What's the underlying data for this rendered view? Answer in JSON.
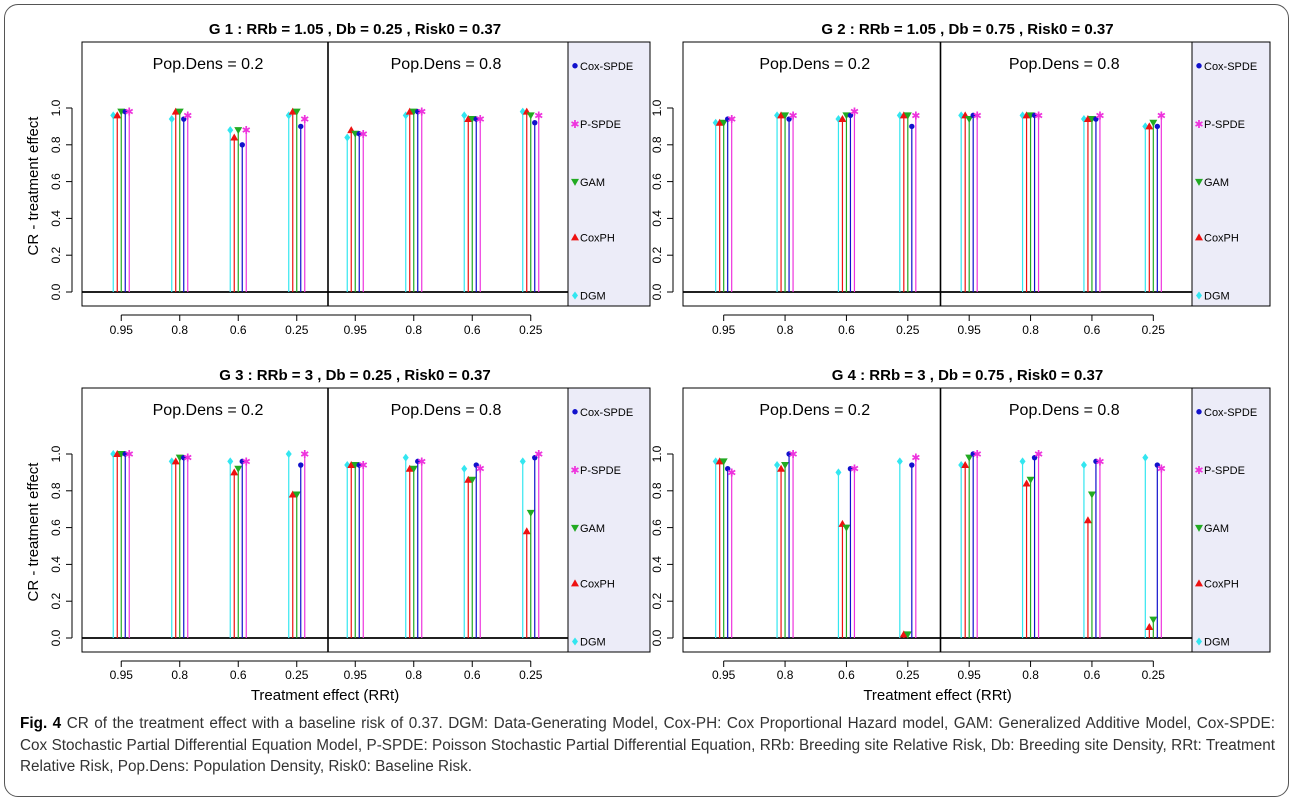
{
  "caption": {
    "label": "Fig. 4",
    "text": "CR of the treatment effect with a baseline risk of 0.37. DGM: Data-Generating Model, Cox-PH: Cox Proportional Hazard model, GAM: Generalized Additive Model, Cox-SPDE: Cox Stochastic Partial Differential Equation Model, P-SPDE: Poisson Stochastic Partial Differential Equation, RRb: Breeding site Relative Risk, Db: Breeding site Density, RRt: Treatment Relative Risk, Pop.Dens: Population Density, Risk0: Baseline Risk."
  },
  "colors": {
    "DGM": "#33e6f0",
    "CoxPH": "#ee1111",
    "GAM": "#22aa22",
    "Cox-SPDE": "#1111cc",
    "P-SPDE": "#ee33dd",
    "legend_bg": "#ececf8"
  },
  "legend": {
    "entries": [
      "Cox-SPDE",
      "P-SPDE",
      "GAM",
      "CoxPH",
      "DGM"
    ],
    "symbols": [
      "●",
      "✱",
      "▼",
      "▲",
      "◆"
    ]
  },
  "chart_data": [
    {
      "type": "scatter",
      "title": "G 1 : RRb = 1.05 , Db = 0.25 , Risk0 = 0.37",
      "ylabel": "CR - treatment effect",
      "xlabel": "",
      "ylim": [
        0,
        1
      ],
      "yticks": [
        "0.0",
        "0.2",
        "0.4",
        "0.6",
        "0.8",
        "1.0"
      ],
      "categories": [
        "0.95",
        "0.8",
        "0.6",
        "0.25",
        "0.95",
        "0.8",
        "0.6",
        "0.25"
      ],
      "groups": [
        "Pop.Dens = 0.2",
        "Pop.Dens = 0.8"
      ],
      "series": [
        {
          "name": "DGM",
          "values": [
            0.96,
            0.94,
            0.88,
            0.96,
            0.84,
            0.96,
            0.96,
            0.98
          ]
        },
        {
          "name": "CoxPH",
          "values": [
            0.96,
            0.98,
            0.84,
            0.98,
            0.88,
            0.98,
            0.94,
            0.98
          ]
        },
        {
          "name": "GAM",
          "values": [
            0.98,
            0.98,
            0.88,
            0.98,
            0.86,
            0.98,
            0.94,
            0.96
          ]
        },
        {
          "name": "Cox-SPDE",
          "values": [
            0.98,
            0.94,
            0.8,
            0.9,
            0.86,
            0.98,
            0.94,
            0.92
          ]
        },
        {
          "name": "P-SPDE",
          "values": [
            0.98,
            0.96,
            0.88,
            0.94,
            0.86,
            0.98,
            0.94,
            0.96
          ]
        }
      ]
    },
    {
      "type": "scatter",
      "title": "G 2 : RRb = 1.05 , Db = 0.75 , Risk0 = 0.37",
      "ylabel": "",
      "xlabel": "",
      "ylim": [
        0,
        1
      ],
      "yticks": [
        "0.0",
        "0.2",
        "0.4",
        "0.6",
        "0.8",
        "1.0"
      ],
      "categories": [
        "0.95",
        "0.8",
        "0.6",
        "0.25",
        "0.95",
        "0.8",
        "0.6",
        "0.25"
      ],
      "groups": [
        "Pop.Dens = 0.2",
        "Pop.Dens = 0.8"
      ],
      "series": [
        {
          "name": "DGM",
          "values": [
            0.92,
            0.96,
            0.94,
            0.96,
            0.96,
            0.96,
            0.94,
            0.9
          ]
        },
        {
          "name": "CoxPH",
          "values": [
            0.92,
            0.96,
            0.94,
            0.96,
            0.96,
            0.96,
            0.94,
            0.9
          ]
        },
        {
          "name": "GAM",
          "values": [
            0.92,
            0.96,
            0.96,
            0.96,
            0.94,
            0.96,
            0.94,
            0.92
          ]
        },
        {
          "name": "Cox-SPDE",
          "values": [
            0.94,
            0.94,
            0.96,
            0.9,
            0.96,
            0.96,
            0.94,
            0.9
          ]
        },
        {
          "name": "P-SPDE",
          "values": [
            0.94,
            0.96,
            0.98,
            0.96,
            0.96,
            0.96,
            0.96,
            0.96
          ]
        }
      ]
    },
    {
      "type": "scatter",
      "title": "G 3 : RRb = 3 , Db = 0.25 , Risk0 = 0.37",
      "ylabel": "CR - treatment effect",
      "xlabel": "Treatment effect (RRt)",
      "ylim": [
        0,
        1
      ],
      "yticks": [
        "0.0",
        "0.2",
        "0.4",
        "0.6",
        "0.8",
        "1.0"
      ],
      "categories": [
        "0.95",
        "0.8",
        "0.6",
        "0.25",
        "0.95",
        "0.8",
        "0.6",
        "0.25"
      ],
      "groups": [
        "Pop.Dens = 0.2",
        "Pop.Dens = 0.8"
      ],
      "series": [
        {
          "name": "DGM",
          "values": [
            1.0,
            0.96,
            0.96,
            1.0,
            0.94,
            0.98,
            0.92,
            0.96
          ]
        },
        {
          "name": "CoxPH",
          "values": [
            1.0,
            0.96,
            0.9,
            0.78,
            0.94,
            0.92,
            0.86,
            0.58
          ]
        },
        {
          "name": "GAM",
          "values": [
            1.0,
            0.98,
            0.92,
            0.78,
            0.94,
            0.92,
            0.86,
            0.68
          ]
        },
        {
          "name": "Cox-SPDE",
          "values": [
            1.0,
            0.98,
            0.96,
            0.94,
            0.94,
            0.96,
            0.94,
            0.98
          ]
        },
        {
          "name": "P-SPDE",
          "values": [
            1.0,
            0.98,
            0.96,
            1.0,
            0.94,
            0.96,
            0.92,
            1.0
          ]
        }
      ]
    },
    {
      "type": "scatter",
      "title": "G 4 : RRb = 3 , Db = 0.75 , Risk0 = 0.37",
      "ylabel": "",
      "xlabel": "Treatment effect (RRt)",
      "ylim": [
        0,
        1
      ],
      "yticks": [
        "0.0",
        "0.2",
        "0.4",
        "0.6",
        "0.8",
        "1.0"
      ],
      "categories": [
        "0.95",
        "0.8",
        "0.6",
        "0.25",
        "0.95",
        "0.8",
        "0.6",
        "0.25"
      ],
      "groups": [
        "Pop.Dens = 0.2",
        "Pop.Dens = 0.8"
      ],
      "series": [
        {
          "name": "DGM",
          "values": [
            0.96,
            0.94,
            0.9,
            0.96,
            0.94,
            0.96,
            0.94,
            0.98
          ]
        },
        {
          "name": "CoxPH",
          "values": [
            0.96,
            0.92,
            0.62,
            0.02,
            0.94,
            0.84,
            0.64,
            0.06
          ]
        },
        {
          "name": "GAM",
          "values": [
            0.96,
            0.94,
            0.6,
            0.02,
            0.98,
            0.86,
            0.78,
            0.1
          ]
        },
        {
          "name": "Cox-SPDE",
          "values": [
            0.92,
            1.0,
            0.92,
            0.94,
            1.0,
            0.98,
            0.96,
            0.94
          ]
        },
        {
          "name": "P-SPDE",
          "values": [
            0.9,
            1.0,
            0.92,
            0.98,
            1.0,
            1.0,
            0.96,
            0.92
          ]
        }
      ]
    }
  ]
}
